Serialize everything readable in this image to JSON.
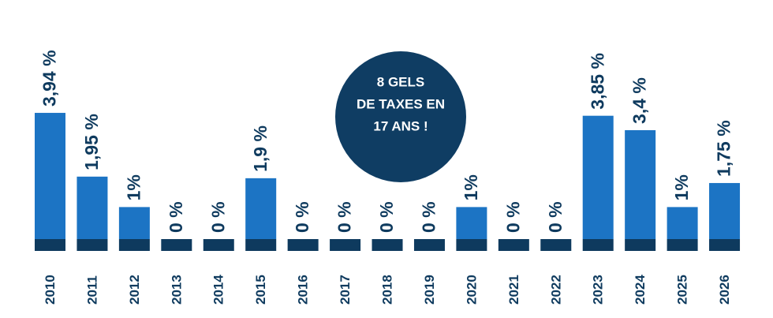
{
  "chart_data": {
    "type": "bar",
    "categories": [
      "2010",
      "2011",
      "2012",
      "2013",
      "2014",
      "2015",
      "2016",
      "2017",
      "2018",
      "2019",
      "2020",
      "2021",
      "2022",
      "2023",
      "2024",
      "2025",
      "2026"
    ],
    "values": [
      3.94,
      1.95,
      1,
      0,
      0,
      1.9,
      0,
      0,
      0,
      0,
      1,
      0,
      0,
      3.85,
      3.4,
      1,
      1.75
    ],
    "value_labels": [
      "3,94 %",
      "1,95 %",
      "1%",
      "0 %",
      "0 %",
      "1,9 %",
      "0 %",
      "0 %",
      "0 %",
      "0 %",
      "1%",
      "0 %",
      "0 %",
      "3,85 %",
      "3,4 %",
      "1%",
      "1,75 %"
    ],
    "color": "#1c74c4",
    "annotation": [
      "8 GELS",
      "DE TAXES EN",
      "17 ANS !"
    ]
  }
}
